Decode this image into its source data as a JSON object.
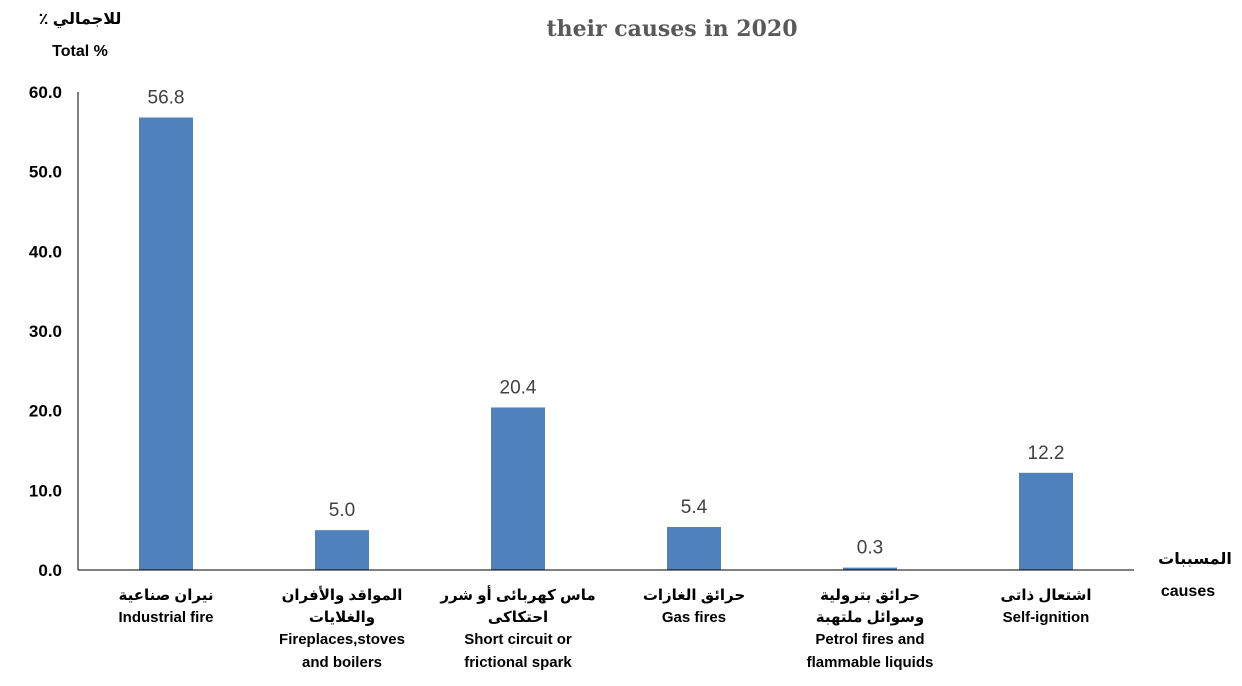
{
  "chart_data": {
    "type": "bar",
    "title": "their causes in 2020",
    "ylabel_ar": "للاجمالي ٪",
    "ylabel": "Total %",
    "xlabel_ar": "المسببات",
    "xlabel": "causes",
    "ylim": [
      0,
      60
    ],
    "y_ticks": [
      "0.0",
      "10.0",
      "20.0",
      "30.0",
      "40.0",
      "50.0",
      "60.0"
    ],
    "grid": false,
    "bar_color": "#4F81BD",
    "categories": [
      {
        "ar": [
          "نيران صناعية"
        ],
        "en": [
          "Industrial fire"
        ]
      },
      {
        "ar": [
          "المواقد والأفران",
          "والغلايات"
        ],
        "en": [
          "Fireplaces,stoves",
          "and boilers"
        ]
      },
      {
        "ar": [
          "ماس كهربائى أو شرر",
          "احتكاكى"
        ],
        "en": [
          "Short circuit or",
          "frictional spark"
        ]
      },
      {
        "ar": [
          "حرائق الغازات"
        ],
        "en": [
          "Gas fires"
        ]
      },
      {
        "ar": [
          "حرائق بترولية",
          "وسوائل ملتهبة"
        ],
        "en": [
          "Petrol fires and",
          "flammable liquids"
        ]
      },
      {
        "ar": [
          "اشتعال ذاتى"
        ],
        "en": [
          "Self-ignition"
        ]
      }
    ],
    "values": [
      56.8,
      5.0,
      20.4,
      5.4,
      0.3,
      12.2
    ],
    "value_labels": [
      "56.8",
      "5.0",
      "20.4",
      "5.4",
      "0.3",
      "12.2"
    ]
  }
}
